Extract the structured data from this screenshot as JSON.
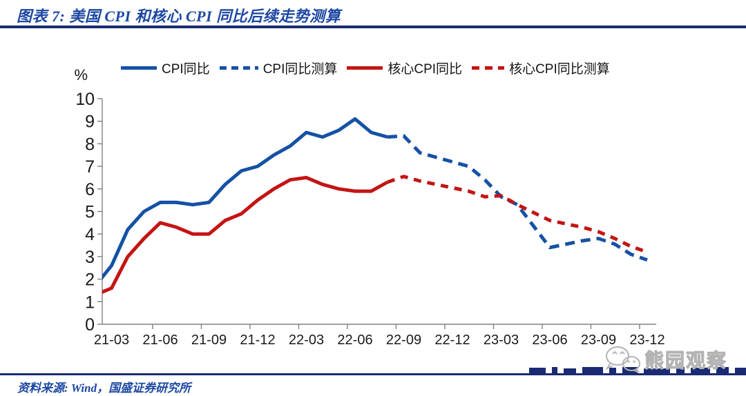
{
  "header": {
    "title": "图表 7: 美国 CPI 和核心 CPI 同比后续走势测算"
  },
  "footer": {
    "source": "资料来源: Wind，国盛证券研究所"
  },
  "watermark": {
    "label": "熊园观察",
    "icon": "wechat-icon"
  },
  "colors": {
    "cpi_blue": "#1551A5",
    "core_red": "#C41414",
    "title_blue": "#1C48A2",
    "navy_rule": "#1A2B73",
    "axis_gray": "#808080",
    "tick_text": "#1A1A1A",
    "watermark_gray": "#B3B3B3"
  },
  "chart_data": {
    "type": "line",
    "title": "美国CPI和核心CPI同比后续走势测算",
    "ylabel": "%",
    "xlabel": "",
    "ylim": [
      0,
      10
    ],
    "yticks": [
      0,
      1,
      2,
      3,
      4,
      5,
      6,
      7,
      8,
      9,
      10
    ],
    "grid": false,
    "legend_position": "top",
    "x": [
      "21-02",
      "21-03",
      "21-04",
      "21-05",
      "21-06",
      "21-07",
      "21-08",
      "21-09",
      "21-10",
      "21-11",
      "21-12",
      "22-01",
      "22-02",
      "22-03",
      "22-04",
      "22-05",
      "22-06",
      "22-07",
      "22-08",
      "22-09",
      "22-10",
      "22-11",
      "22-12",
      "23-01",
      "23-02",
      "23-03",
      "23-04",
      "23-05",
      "23-06",
      "23-07",
      "23-08",
      "23-09",
      "23-10",
      "23-11",
      "23-12"
    ],
    "x_tick_labels": [
      "21-03",
      "21-06",
      "21-09",
      "21-12",
      "22-03",
      "22-06",
      "22-09",
      "22-12",
      "23-03",
      "23-06",
      "23-09",
      "23-12"
    ],
    "series": [
      {
        "name": "CPI同比",
        "style": "solid",
        "color": "#1551A5",
        "values": [
          1.7,
          2.6,
          4.2,
          5.0,
          5.4,
          5.4,
          5.3,
          5.4,
          6.2,
          6.8,
          7.0,
          7.5,
          7.9,
          8.5,
          8.3,
          8.6,
          9.1,
          8.5,
          8.3,
          null,
          null,
          null,
          null,
          null,
          null,
          null,
          null,
          null,
          null,
          null,
          null,
          null,
          null,
          null,
          null
        ]
      },
      {
        "name": "CPI同比测算",
        "style": "dashed",
        "color": "#1551A5",
        "values": [
          null,
          null,
          null,
          null,
          null,
          null,
          null,
          null,
          null,
          null,
          null,
          null,
          null,
          null,
          null,
          null,
          null,
          null,
          8.3,
          8.35,
          7.6,
          7.4,
          7.2,
          7.0,
          6.4,
          5.65,
          5.3,
          4.35,
          3.4,
          3.55,
          3.7,
          3.8,
          3.55,
          3.1,
          2.85
        ]
      },
      {
        "name": "核心CPI同比",
        "style": "solid",
        "color": "#C41414",
        "values": [
          1.3,
          1.6,
          3.0,
          3.8,
          4.5,
          4.3,
          4.0,
          4.0,
          4.6,
          4.9,
          5.5,
          6.0,
          6.4,
          6.5,
          6.2,
          6.0,
          5.9,
          5.9,
          6.3,
          null,
          null,
          null,
          null,
          null,
          null,
          null,
          null,
          null,
          null,
          null,
          null,
          null,
          null,
          null,
          null
        ]
      },
      {
        "name": "核心CPI同比测算",
        "style": "dashed",
        "color": "#C41414",
        "values": [
          null,
          null,
          null,
          null,
          null,
          null,
          null,
          null,
          null,
          null,
          null,
          null,
          null,
          null,
          null,
          null,
          null,
          null,
          6.3,
          6.55,
          6.35,
          6.2,
          6.05,
          5.9,
          5.65,
          5.7,
          5.3,
          4.95,
          4.6,
          4.45,
          4.3,
          4.1,
          3.8,
          3.45,
          3.2
        ]
      }
    ]
  }
}
